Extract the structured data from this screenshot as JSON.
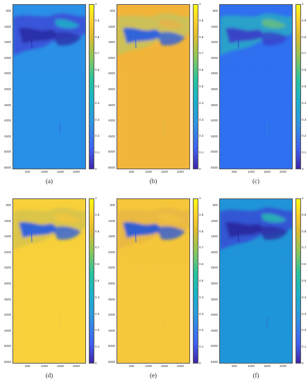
{
  "yticks": [
    "500",
    "1000",
    "1500",
    "2000",
    "2500",
    "3000",
    "3500",
    "4000",
    "4500",
    "5000",
    "5500"
  ],
  "xticks": [
    "500",
    "1000",
    "1500",
    "2000"
  ],
  "cbar_ticks": [
    "0",
    "0.1",
    "0.2",
    "0.3",
    "0.4",
    "0.5",
    "0.6",
    "0.7",
    "0.8",
    "0.9",
    "1"
  ],
  "panels": [
    {
      "caption": "(a)",
      "background": "#2a8fe6",
      "cloud": "#3a50d8",
      "dark": "#2a2ea8",
      "light": "#1fb8c8"
    },
    {
      "caption": "(b)",
      "background": "#f2b53a",
      "cloud": "#c9c15a",
      "dark": "#2a5fe0",
      "light": "#e8b24a"
    },
    {
      "caption": "(c)",
      "background": "#2f6ff0",
      "cloud": "#2aa6c6",
      "dark": "#3a3fc8",
      "light": "#6cc078"
    },
    {
      "caption": "(d)",
      "background": "#f8d13a",
      "cloud": "#d8c34a",
      "dark": "#2a60e0",
      "light": "#f4c63c"
    },
    {
      "caption": "(e)",
      "background": "#f6c63a",
      "cloud": "#e8b844",
      "dark": "#2a5ad8",
      "light": "#f2c240"
    },
    {
      "caption": "(f)",
      "background": "#2094d8",
      "cloud": "#3350d4",
      "dark": "#2c2aa0",
      "light": "#2ac0b0"
    }
  ]
}
